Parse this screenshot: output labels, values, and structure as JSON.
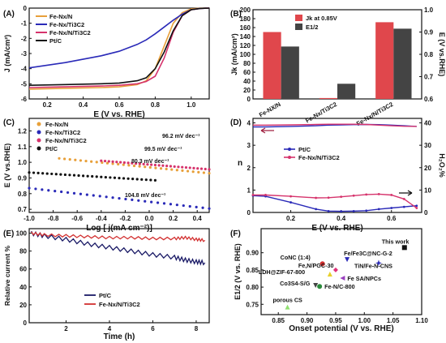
{
  "chart_data": [
    {
      "panel": "(A)",
      "type": "line",
      "xlabel": "E (V vs. RHE)",
      "ylabel": "J (mA/cm²)",
      "xlim": [
        0.1,
        1.1
      ],
      "ylim": [
        -6,
        0
      ],
      "xticks": [
        "0.2",
        "0.4",
        "0.6",
        "0.8",
        "1.0"
      ],
      "yticks": [
        "-6",
        "-5",
        "-4",
        "-3",
        "-2",
        "-1",
        "0"
      ],
      "legend": "top-left",
      "series": [
        {
          "name": "Fe-Nx/N",
          "color": "#e8a03a",
          "x": [
            0.1,
            0.3,
            0.5,
            0.6,
            0.7,
            0.75,
            0.8,
            0.85,
            0.9,
            0.95,
            1.0,
            1.05,
            1.1
          ],
          "y": [
            -5.35,
            -5.3,
            -5.25,
            -5.2,
            -5.05,
            -4.8,
            -4.0,
            -2.5,
            -1.0,
            -0.3,
            -0.05,
            -0.01,
            0
          ]
        },
        {
          "name": "Fe-Nx/Ti3C2",
          "color": "#2a2ab8",
          "x": [
            0.1,
            0.3,
            0.5,
            0.6,
            0.7,
            0.75,
            0.8,
            0.85,
            0.9,
            0.95,
            1.0,
            1.05,
            1.1
          ],
          "y": [
            -3.95,
            -3.6,
            -3.15,
            -2.85,
            -2.4,
            -2.1,
            -1.7,
            -1.25,
            -0.8,
            -0.4,
            -0.1,
            -0.02,
            0
          ]
        },
        {
          "name": "Fe-Nx/N/Ti3C2",
          "color": "#d6336c",
          "x": [
            0.1,
            0.3,
            0.5,
            0.6,
            0.7,
            0.75,
            0.8,
            0.85,
            0.9,
            0.95,
            1.0,
            1.05,
            1.1
          ],
          "y": [
            -5.25,
            -5.2,
            -5.15,
            -5.1,
            -5.0,
            -4.85,
            -4.5,
            -3.3,
            -1.6,
            -0.5,
            -0.1,
            -0.02,
            0
          ]
        },
        {
          "name": "Pt/C",
          "color": "#111111",
          "x": [
            0.1,
            0.3,
            0.5,
            0.6,
            0.7,
            0.75,
            0.8,
            0.85,
            0.9,
            0.95,
            1.0,
            1.05,
            1.1
          ],
          "y": [
            -5.1,
            -5.05,
            -5.0,
            -4.95,
            -4.8,
            -4.6,
            -4.0,
            -2.9,
            -1.5,
            -0.5,
            -0.1,
            -0.02,
            0
          ]
        }
      ]
    },
    {
      "panel": "(B)",
      "type": "bar",
      "categories": [
        "Fe-NX/N",
        "Fe-Nx/Ti3C2",
        "Fe-Nx/N/Ti3C2"
      ],
      "ylabel": "Jk (mA/cm²)",
      "y2label": "E (V vs.RHE)",
      "ylim": [
        0,
        200
      ],
      "y2lim": [
        0.6,
        1.0
      ],
      "yticks": [
        "0",
        "20",
        "40",
        "60",
        "80",
        "100",
        "120",
        "140",
        "160",
        "180",
        "200"
      ],
      "y2ticks": [
        "0.6",
        "0.7",
        "0.8",
        "0.9",
        "1.0"
      ],
      "legend": "top-left",
      "series": [
        {
          "name": "Jk at 0.85V",
          "color": "#e0474c",
          "values": [
            150,
            2,
            172
          ],
          "axis": "left"
        },
        {
          "name": "E1/2",
          "color": "#444444",
          "values": [
            0.835,
            0.668,
            0.915
          ],
          "axis": "right"
        }
      ]
    },
    {
      "panel": "(C)",
      "type": "scatter",
      "xlabel": "Log [ j(mA cm⁻²)]",
      "ylabel": "E (V vs.RHE)",
      "xlim": [
        -1.0,
        0.5
      ],
      "ylim": [
        0.68,
        1.28
      ],
      "xticks": [
        "-1.0",
        "-0.8",
        "-0.6",
        "-0.4",
        "-0.2",
        "0.0",
        "0.2",
        "0.4"
      ],
      "yticks": [
        "0.7",
        "0.8",
        "0.9",
        "1.0",
        "1.1",
        "1.2"
      ],
      "legend": "top-left",
      "series": [
        {
          "name": "Fe-Nx/N",
          "color": "#e8a03a",
          "x": [
            -0.75,
            0.5
          ],
          "y": [
            1.025,
            0.93
          ]
        },
        {
          "name": "Fe-Nx/Ti3C2",
          "color": "#2a2ab8",
          "x": [
            -1.0,
            0.5
          ],
          "y": [
            0.835,
            0.705
          ]
        },
        {
          "name": "Fe-Nx/N/Ti3C2",
          "color": "#d6336c",
          "x": [
            -0.4,
            0.5
          ],
          "y": [
            1.01,
            0.955
          ]
        },
        {
          "name": "Pt/C",
          "color": "#111111",
          "x": [
            -1.0,
            0.05
          ],
          "y": [
            0.935,
            0.885
          ]
        }
      ],
      "annotations": [
        "96.2 mV dec⁻¹",
        "99.5 mV dec⁻¹",
        "80.3 mV dec⁻¹",
        "104.8 mV dec⁻¹"
      ]
    },
    {
      "panel": "(D)",
      "type": "line",
      "xlabel": "E (V vs. RHE)",
      "ylabel": "n",
      "y2label": "H₂O₂%",
      "xlim": [
        0.05,
        0.72
      ],
      "ylim": [
        0,
        4.2
      ],
      "y2lim": [
        0,
        42
      ],
      "xticks": [
        "0.2",
        "0.4",
        "0.6"
      ],
      "yticks": [
        "0",
        "1",
        "2",
        "3",
        "4"
      ],
      "y2ticks": [
        "0",
        "10",
        "20",
        "30",
        "40"
      ],
      "legend": "center-left",
      "series": [
        {
          "name": "Pt/C",
          "color": "#2a2ab8",
          "x": [
            0.05,
            0.1,
            0.2,
            0.3,
            0.35,
            0.4,
            0.45,
            0.5,
            0.55,
            0.6,
            0.65,
            0.7
          ],
          "n": [
            3.82,
            3.82,
            3.84,
            3.87,
            3.9,
            3.91,
            3.92,
            3.93,
            3.92,
            3.9,
            3.87,
            3.84
          ],
          "h2o2": [
            7.5,
            7.2,
            4.5,
            1.5,
            0.6,
            0.5,
            0.6,
            0.8,
            1.5,
            2.0,
            2.5,
            3.0
          ]
        },
        {
          "name": "Fe-Nx/N/Ti3C2",
          "color": "#d6336c",
          "x": [
            0.05,
            0.1,
            0.2,
            0.3,
            0.35,
            0.4,
            0.45,
            0.5,
            0.55,
            0.6,
            0.65,
            0.7
          ],
          "n": [
            3.9,
            3.9,
            3.91,
            3.93,
            3.94,
            3.94,
            3.94,
            3.93,
            3.9,
            3.87,
            3.85,
            3.84
          ],
          "h2o2": [
            7.8,
            7.8,
            7.2,
            6.5,
            6.6,
            7.0,
            7.5,
            8.0,
            8.2,
            7.8,
            6.0,
            2.0
          ]
        }
      ]
    },
    {
      "panel": "(E)",
      "type": "line",
      "xlabel": "Time (h)",
      "ylabel": "Relative current %",
      "xlim": [
        0.3,
        8.6
      ],
      "ylim": [
        0,
        105
      ],
      "xticks": [
        "2",
        "4",
        "6",
        "8"
      ],
      "yticks": [
        "0",
        "20",
        "40",
        "60",
        "80",
        "100"
      ],
      "legend": "bottom-center",
      "series": [
        {
          "name": "Pt/C",
          "color": "#1a1a66",
          "x": [
            0.4,
            1.0,
            2.0,
            3.0,
            4.0,
            5.0,
            6.0,
            7.0,
            7.5,
            8.0,
            8.4
          ],
          "y": [
            100,
            97,
            93,
            88,
            84,
            80,
            76,
            73,
            70,
            68,
            67
          ]
        },
        {
          "name": "Fe-Nx/N/Ti3C2",
          "color": "#d23030",
          "x": [
            0.4,
            1.0,
            2.0,
            3.0,
            4.0,
            5.0,
            6.0,
            7.0,
            7.5,
            8.0,
            8.4
          ],
          "y": [
            100,
            98,
            97,
            96,
            95,
            95,
            94,
            94,
            95,
            93,
            92
          ]
        }
      ]
    },
    {
      "panel": "(F)",
      "type": "scatter",
      "xlabel": "Onset potential (V vs. RHE)",
      "ylabel": "E1/2 (V vs. RHE)",
      "xlim": [
        0.82,
        1.1
      ],
      "ylim": [
        0.72,
        0.97
      ],
      "xticks": [
        "0.85",
        "0.90",
        "0.95",
        "1.00",
        "1.05",
        "1.10"
      ],
      "yticks": [
        "0.75",
        "0.80",
        "0.85",
        "0.90"
      ],
      "points": [
        {
          "label": "This work",
          "x": 1.07,
          "y": 0.915,
          "color": "#111111",
          "shape": "square"
        },
        {
          "label": "Fe/Fe3C@NC-G-2",
          "x": 0.97,
          "y": 0.88,
          "color": "#2a2ab8",
          "shape": "triangle-down"
        },
        {
          "label": "CoNC (1:4)",
          "x": 0.927,
          "y": 0.868,
          "color": "#d23030",
          "shape": "circle"
        },
        {
          "label": "TiN/Fe-N-CNS",
          "x": 1.025,
          "y": 0.87,
          "color": "#2a2ab8",
          "shape": "star"
        },
        {
          "label": "Fe,N/PGC-30",
          "x": 0.95,
          "y": 0.85,
          "color": "#e0307a",
          "shape": "diamond"
        },
        {
          "label": "LDH@ZIF-67-800",
          "x": 0.94,
          "y": 0.838,
          "color": "#e8d02a",
          "shape": "triangle"
        },
        {
          "label": "Fe SA/NPCs",
          "x": 0.962,
          "y": 0.826,
          "color": "#9a40c0",
          "shape": "triangle-left"
        },
        {
          "label": "Co3S4-S/G",
          "x": 0.915,
          "y": 0.805,
          "color": "#444444",
          "shape": "triangle-down"
        },
        {
          "label": "Fe-N/C-800",
          "x": 0.922,
          "y": 0.802,
          "color": "#2a8a3a",
          "shape": "circle"
        },
        {
          "label": "porous CS",
          "x": 0.866,
          "y": 0.742,
          "color": "#90e070",
          "shape": "triangle"
        }
      ]
    }
  ]
}
